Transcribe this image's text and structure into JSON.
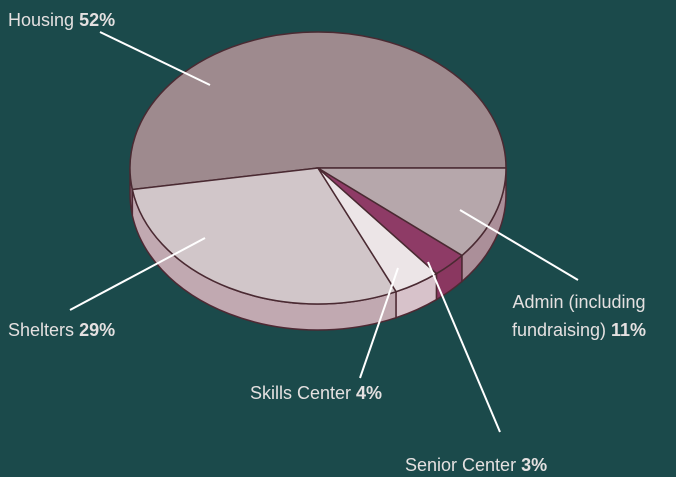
{
  "chart_data": {
    "type": "pie",
    "categories": [
      "Housing",
      "Shelters",
      "Skills Center",
      "Senior Center",
      "Admin (including fundraising)"
    ],
    "values": [
      52,
      29,
      4,
      3,
      11
    ],
    "value_labels": [
      "52%",
      "29%",
      "4%",
      "3%",
      "11%"
    ],
    "colors": [
      "#9e8a8e",
      "#d1c6c9",
      "#ece5e7",
      "#8e3b66",
      "#b6a7ab"
    ]
  }
}
